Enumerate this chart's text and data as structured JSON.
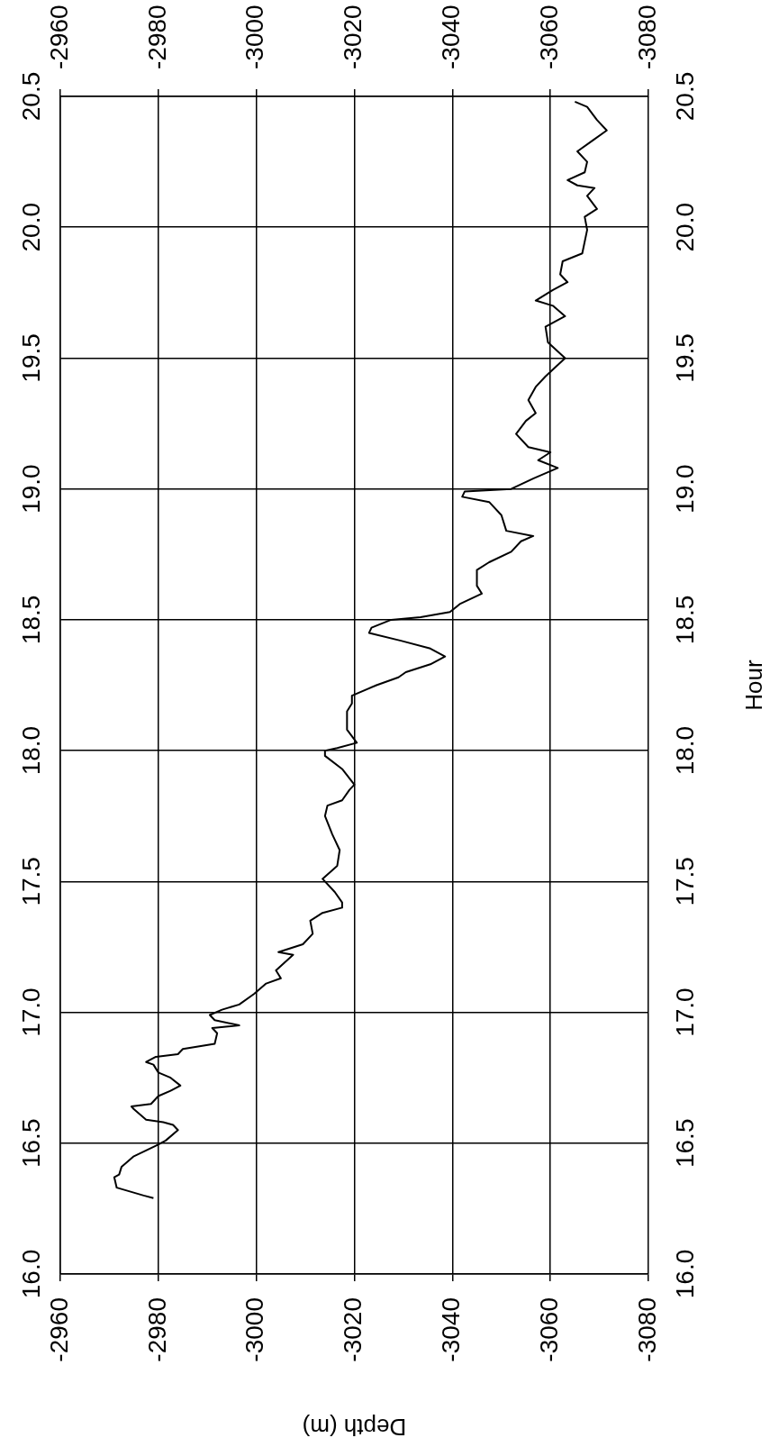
{
  "chart_data": {
    "type": "line",
    "xlabel": "Depth (m)",
    "y2label": "Hour",
    "color": "#000000",
    "marker": "none",
    "line_style": "solid",
    "grid": true,
    "ylim": [
      16,
      20.5
    ],
    "yticks": [
      {
        "value": 16,
        "label": "16.0"
      },
      {
        "value": 16.5,
        "label": "16.5"
      },
      {
        "value": 17,
        "label": "17.0"
      },
      {
        "value": 17.5,
        "label": "17.5"
      },
      {
        "value": 18,
        "label": "18.0"
      },
      {
        "value": 18.5,
        "label": "18.5"
      },
      {
        "value": 19,
        "label": "19.0"
      },
      {
        "value": 19.5,
        "label": "19.5"
      },
      {
        "value": 20,
        "label": "20.0"
      },
      {
        "value": 20.5,
        "label": "20.5"
      }
    ],
    "y2lim": [
      16,
      20.5
    ],
    "y2ticks": [
      {
        "value": 16,
        "label": "16.0"
      },
      {
        "value": 16.5,
        "label": "16.5"
      },
      {
        "value": 17,
        "label": "17.0"
      },
      {
        "value": 17.5,
        "label": "17.5"
      },
      {
        "value": 18,
        "label": "18.0"
      },
      {
        "value": 18.5,
        "label": "18.5"
      },
      {
        "value": 19,
        "label": "19.0"
      },
      {
        "value": 19.5,
        "label": "19.5"
      },
      {
        "value": 20,
        "label": "20.0"
      },
      {
        "value": 20.5,
        "label": "20.5"
      }
    ],
    "xlim": [
      -2960,
      -3080
    ],
    "xticks": [
      -2960,
      -2980,
      -3000,
      -3020,
      -3040,
      -3060,
      -3080
    ],
    "x2lim": [
      -2960,
      -3080
    ],
    "x2ticks": [
      -2960,
      -2980,
      -3000,
      -3020,
      -3040,
      -3060,
      -3080
    ],
    "values": [
      16.29,
      16.3,
      16.33,
      16.37,
      16.38,
      16.41,
      16.45,
      16.49,
      16.51,
      16.55,
      16.57,
      16.58,
      16.59,
      16.63,
      16.64,
      16.65,
      16.68,
      16.7,
      16.72,
      16.75,
      16.77,
      16.8,
      16.81,
      16.83,
      16.84,
      16.86,
      16.88,
      16.92,
      16.94,
      16.95,
      16.97,
      16.99,
      17.01,
      17.03,
      17.07,
      17.11,
      17.13,
      17.16,
      17.22,
      17.23,
      17.26,
      17.3,
      17.35,
      17.38,
      17.4,
      17.42,
      17.46,
      17.51,
      17.56,
      17.62,
      17.68,
      17.75,
      17.79,
      17.81,
      17.85,
      17.87,
      17.93,
      17.98,
      18.0,
      18.01,
      18.03,
      18.08,
      18.15,
      18.18,
      18.21,
      18.25,
      18.28,
      18.3,
      18.33,
      18.36,
      18.39,
      18.42,
      18.45,
      18.47,
      18.5,
      18.51,
      18.53,
      18.56,
      18.6,
      18.63,
      18.69,
      18.72,
      18.76,
      18.8,
      18.82,
      18.84,
      18.9,
      18.95,
      18.97,
      18.99,
      19.0,
      19.04,
      19.08,
      19.11,
      19.14,
      19.16,
      19.21,
      19.26,
      19.29,
      19.34,
      19.39,
      19.43,
      19.5,
      19.56,
      19.62,
      19.66,
      19.7,
      19.72,
      19.76,
      19.79,
      19.82,
      19.87,
      19.9,
      19.99,
      20.04,
      20.07,
      20.12,
      20.15,
      20.16,
      20.18,
      20.21,
      20.25,
      20.29,
      20.33,
      20.37,
      20.41,
      20.46,
      20.48
    ],
    "x": [
      -2979,
      -2977,
      -2971.5,
      -2971,
      -2972,
      -2972.5,
      -2975,
      -2979.5,
      -2981.5,
      -2984,
      -2983,
      -2981,
      -2977.5,
      -2975,
      -2974.5,
      -2978.5,
      -2980,
      -2982.5,
      -2984.5,
      -2982.5,
      -2980,
      -2979,
      -2977.5,
      -2979.5,
      -2984,
      -2985,
      -2991.5,
      -2992,
      -2991,
      -2996.5,
      -2991.5,
      -2990.5,
      -2993,
      -2996.5,
      -2999.5,
      -3002,
      -3005,
      -3004,
      -3007.5,
      -3004.5,
      -3009.5,
      -3011.5,
      -3011,
      -3013.5,
      -3017.5,
      -3017.5,
      -3016,
      -3013.5,
      -3016.5,
      -3017,
      -3015.5,
      -3014,
      -3014.5,
      -3017.5,
      -3019,
      -3020,
      -3017.5,
      -3014,
      -3014,
      -3016.5,
      -3020.5,
      -3018.5,
      -3018.5,
      -3019.5,
      -3019.5,
      -3024.5,
      -3029,
      -3030.5,
      -3035.5,
      -3038.5,
      -3035.5,
      -3029.5,
      -3023,
      -3023.5,
      -3027.5,
      -3033.5,
      -3039.5,
      -3041.5,
      -3046,
      -3045,
      -3045,
      -3047.5,
      -3052,
      -3054,
      -3056.5,
      -3051,
      -3050,
      -3047.5,
      -3042,
      -3042.5,
      -3052,
      -3056.5,
      -3061.5,
      -3057.5,
      -3060,
      -3055.5,
      -3053,
      -3055,
      -3057,
      -3055.5,
      -3057,
      -3059,
      -3063,
      -3059.5,
      -3059,
      -3063,
      -3060.5,
      -3057,
      -3060.5,
      -3063.5,
      -3062,
      -3062.5,
      -3066.5,
      -3067.5,
      -3067,
      -3069.5,
      -3067.5,
      -3069,
      -3065.5,
      -3063.5,
      -3067,
      -3067.5,
      -3065.5,
      -3068.5,
      -3071.5,
      -3069.5,
      -3067.5,
      -3065
    ]
  }
}
